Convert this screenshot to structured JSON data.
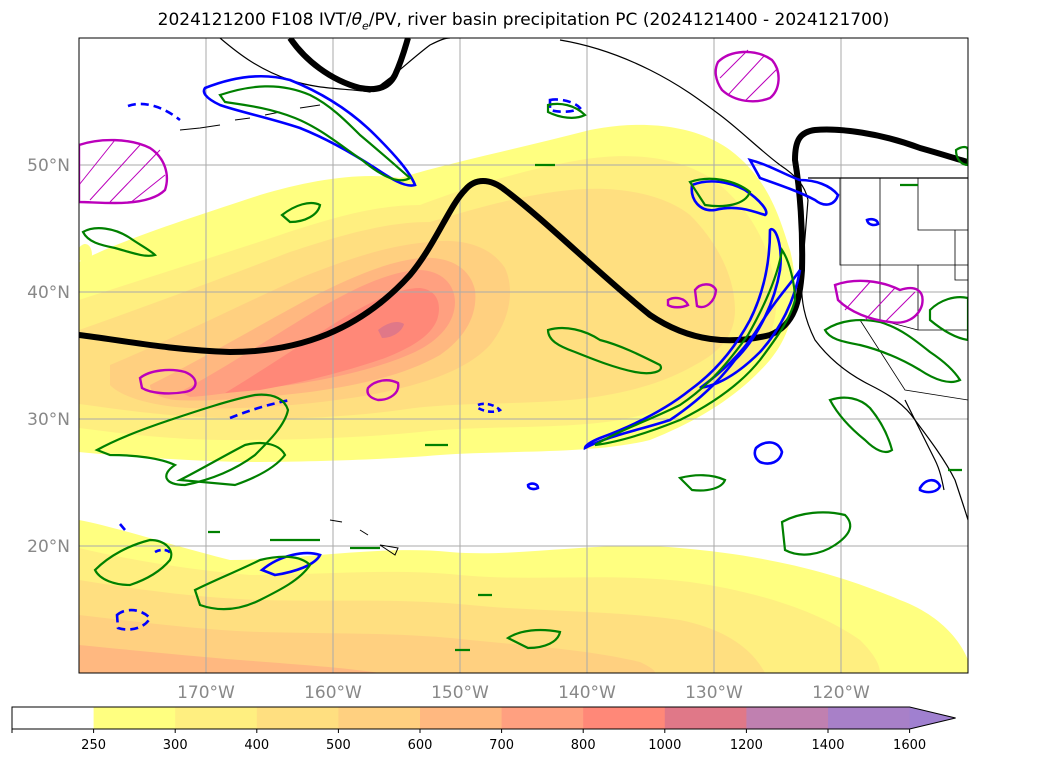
{
  "title": {
    "prefix": "2024121200 F108 IVT/",
    "theta": "θ",
    "sub": "e",
    "suffix": "/PV, river basin precipitation PC (2024121400 - 2024121700)"
  },
  "map": {
    "lon_range": [
      -180,
      -110
    ],
    "lat_range": [
      10,
      60
    ],
    "lon_ticks": [
      {
        "value": -170,
        "label": "170°W"
      },
      {
        "value": -160,
        "label": "160°W"
      },
      {
        "value": -150,
        "label": "150°W"
      },
      {
        "value": -140,
        "label": "140°W"
      },
      {
        "value": -130,
        "label": "130°W"
      },
      {
        "value": -120,
        "label": "120°W"
      }
    ],
    "lat_ticks": [
      {
        "value": 20,
        "label": "20°N"
      },
      {
        "value": 30,
        "label": "30°N"
      },
      {
        "value": 40,
        "label": "40°N"
      },
      {
        "value": 50,
        "label": "50°N"
      }
    ],
    "grid": true,
    "contour_colors": {
      "pv_line": "#000000",
      "theta_e": "#0000ff",
      "precip_green": "#008000",
      "precip_magenta": "#bb00bb"
    }
  },
  "colorbar": {
    "levels": [
      "250",
      "300",
      "400",
      "500",
      "600",
      "700",
      "800",
      "1000",
      "1200",
      "1400",
      "1600"
    ],
    "colors": [
      "#ffffff",
      "#ffff80",
      "#ffef80",
      "#ffdf80",
      "#ffd080",
      "#ffb880",
      "#ffa080",
      "#ff8878",
      "#e07888",
      "#c080b0",
      "#a880c8",
      "#a080d0"
    ],
    "extend": "max"
  }
}
